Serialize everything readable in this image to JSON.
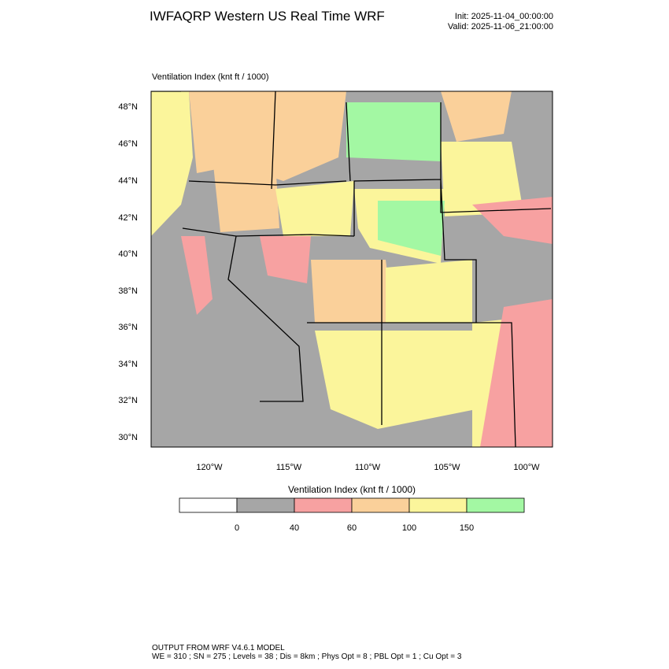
{
  "header": {
    "title": "IWFAQRP Western US Real Time WRF",
    "init": "Init: 2025-11-04_00:00:00",
    "valid": "Valid: 2025-11-06_21:00:00"
  },
  "map": {
    "title": "Ventilation Index   (knt ft / 1000)",
    "lat_labels": [
      "48°N",
      "46°N",
      "44°N",
      "42°N",
      "40°N",
      "38°N",
      "36°N",
      "34°N",
      "32°N",
      "30°N"
    ],
    "lon_labels": [
      "120°W",
      "115°W",
      "110°W",
      "105°W",
      "100°W"
    ]
  },
  "colorbar": {
    "title": "Ventilation Index   (knt ft / 1000)",
    "colors": [
      "#ffffff",
      "#a6a6a6",
      "#f7a1a1",
      "#fad09a",
      "#fbf59b",
      "#a3f8a3"
    ],
    "labels": [
      "0",
      "40",
      "60",
      "100",
      "150"
    ]
  },
  "footer": {
    "line1": "OUTPUT FROM WRF V4.6.1 MODEL",
    "line2": "WE = 310 ; SN = 275 ; Levels = 38 ; Dis = 8km ; Phys Opt = 8 ; PBL Opt = 1 ; Cu Opt = 3"
  }
}
